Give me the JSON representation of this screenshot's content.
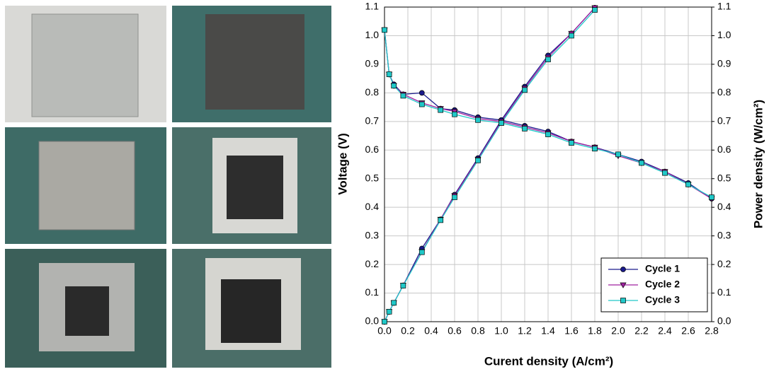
{
  "chart_data": {
    "type": "line",
    "x_label": "Curent density (A/cm²)",
    "y_label": "Voltage (V)",
    "y2_label": "Power density (W/cm²)",
    "xlim": [
      0,
      2.8
    ],
    "xticks": [
      {
        "value": 0,
        "label": "0.0"
      },
      0.2,
      0.4,
      0.6,
      0.8,
      {
        "value": 1,
        "label": "1.0"
      },
      1.2,
      1.4,
      1.6,
      1.8,
      {
        "value": 2,
        "label": "2.0"
      },
      2.2,
      2.4,
      2.6,
      2.8
    ],
    "ylim": [
      0,
      1.1
    ],
    "yticks": [
      {
        "value": 0,
        "label": "0.0"
      },
      0.1,
      0.2,
      0.3,
      0.4,
      0.5,
      0.6,
      0.7,
      0.8,
      0.9,
      {
        "value": 1,
        "label": "1.0"
      },
      1.1
    ],
    "y2lim": [
      0,
      1.1
    ],
    "y2ticks": [
      {
        "value": 0,
        "label": "0.0"
      },
      0.1,
      0.2,
      0.3,
      0.4,
      0.5,
      0.6,
      0.7,
      0.8,
      0.9,
      {
        "value": 1,
        "label": "1.0"
      },
      1.1
    ],
    "grid": true,
    "legend": "lower right",
    "series": [
      {
        "name": "Cycle 1",
        "color": "#1a1a8c",
        "marker": "circle",
        "x": [
          0,
          0.04,
          0.08,
          0.16,
          0.32,
          0.48,
          0.6,
          0.8,
          1.0,
          1.2,
          1.4,
          1.6,
          1.8,
          2.0,
          2.2,
          2.4,
          2.6,
          2.8
        ],
        "values": [
          1.02,
          0.865,
          0.83,
          0.795,
          0.8,
          0.745,
          0.74,
          0.715,
          0.705,
          0.685,
          0.665,
          0.63,
          0.61,
          0.585,
          0.56,
          0.525,
          0.485,
          0.43
        ],
        "power": [
          0,
          0.035,
          0.066,
          0.127,
          0.256,
          0.358,
          0.444,
          0.572,
          0.705,
          0.822,
          0.931,
          1.008,
          1.098,
          null,
          null,
          null,
          null,
          null
        ],
        "power_axis": "y2"
      },
      {
        "name": "Cycle 2",
        "color": "#a020a0",
        "marker": "triangle-down",
        "x": [
          0,
          0.04,
          0.08,
          0.16,
          0.32,
          0.48,
          0.6,
          0.8,
          1.0,
          1.2,
          1.4,
          1.6,
          1.8,
          2.0,
          2.2,
          2.4,
          2.6,
          2.8
        ],
        "values": [
          1.02,
          0.865,
          0.825,
          0.795,
          0.765,
          0.745,
          0.735,
          0.71,
          0.7,
          0.68,
          0.66,
          0.63,
          0.61,
          0.58,
          0.555,
          0.525,
          0.48,
          0.43
        ],
        "power": [
          0,
          0.035,
          0.066,
          0.127,
          0.245,
          0.358,
          0.441,
          0.568,
          0.7,
          0.816,
          0.924,
          1.008,
          1.098,
          null,
          null,
          null,
          null,
          null
        ],
        "power_axis": "y2"
      },
      {
        "name": "Cycle 3",
        "color": "#20c8c8",
        "marker": "square",
        "x": [
          0,
          0.04,
          0.08,
          0.16,
          0.32,
          0.48,
          0.6,
          0.8,
          1.0,
          1.2,
          1.4,
          1.6,
          1.8,
          2.0,
          2.2,
          2.4,
          2.6,
          2.8
        ],
        "values": [
          1.02,
          0.865,
          0.825,
          0.79,
          0.76,
          0.74,
          0.725,
          0.705,
          0.695,
          0.675,
          0.655,
          0.625,
          0.605,
          0.585,
          0.555,
          0.52,
          0.48,
          0.435
        ],
        "power": [
          0,
          0.035,
          0.066,
          0.126,
          0.243,
          0.355,
          0.435,
          0.564,
          0.695,
          0.81,
          0.917,
          1.0,
          1.09,
          null,
          null,
          null,
          null,
          null
        ],
        "power_axis": "y2"
      }
    ]
  }
}
